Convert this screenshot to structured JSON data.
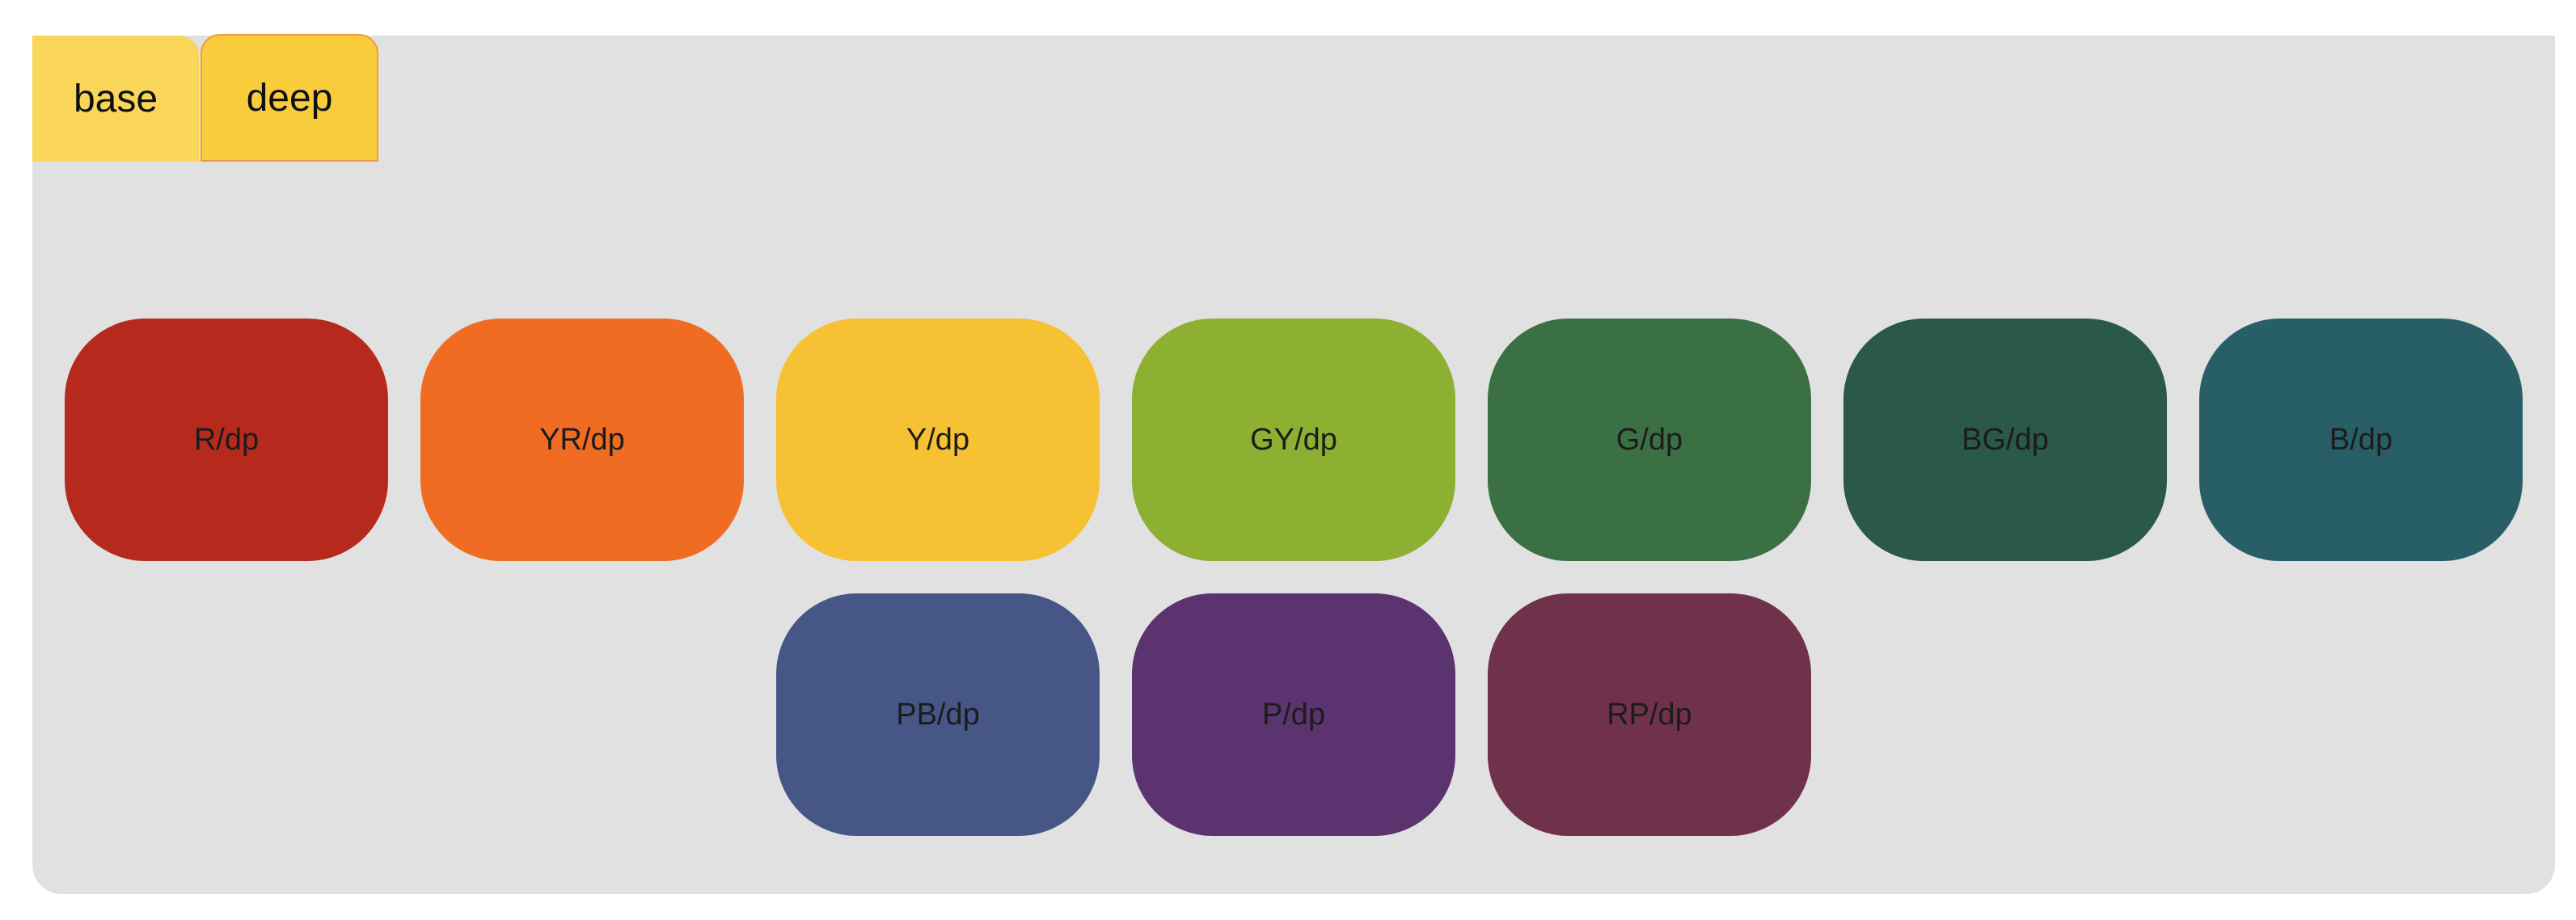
{
  "tabs": {
    "base_label": "base",
    "deep_label": "deep",
    "active": "deep"
  },
  "swatches": [
    {
      "label": "R/dp",
      "color": "#b62a1e"
    },
    {
      "label": "YR/dp",
      "color": "#ef6c22"
    },
    {
      "label": "Y/dp",
      "color": "#f6c132"
    },
    {
      "label": "GY/dp",
      "color": "#8daf32"
    },
    {
      "label": "G/dp",
      "color": "#3b7045"
    },
    {
      "label": "BG/dp",
      "color": "#2a584a"
    },
    {
      "label": "B/dp",
      "color": "#285f66"
    },
    {
      "label": "PB/dp",
      "color": "#465787"
    },
    {
      "label": "P/dp",
      "color": "#5b336e"
    },
    {
      "label": "RP/dp",
      "color": "#70324b"
    }
  ]
}
